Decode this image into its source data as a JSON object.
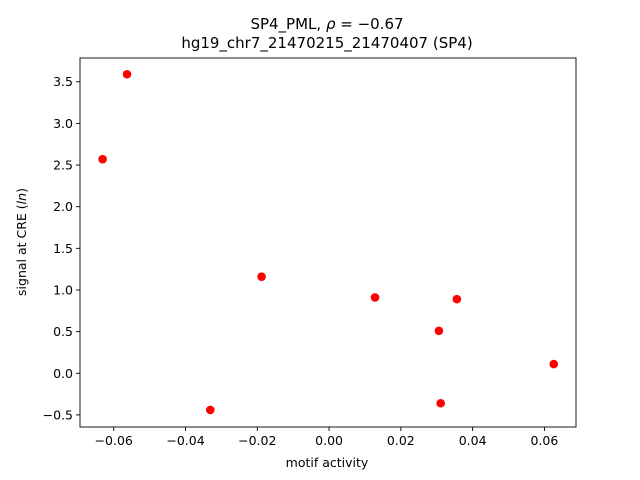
{
  "chart_data": {
    "type": "scatter",
    "title_line1_prefix": "SP4_PML, ",
    "title_line1_rho": "ρ",
    "title_line1_value": " = −0.67",
    "title_line2": "hg19_chr7_21470215_21470407 (SP4)",
    "xlabel": "motif activity",
    "ylabel_prefix": "signal at CRE (",
    "ylabel_italic": "ln",
    "ylabel_suffix": ")",
    "xlim": [
      -0.0694,
      0.0688
    ],
    "ylim": [
      -0.645,
      3.785
    ],
    "x_ticks": [
      {
        "value": -0.06,
        "label": "−0.06"
      },
      {
        "value": -0.04,
        "label": "−0.04"
      },
      {
        "value": -0.02,
        "label": "−0.02"
      },
      {
        "value": 0.0,
        "label": "0.00"
      },
      {
        "value": 0.02,
        "label": "0.02"
      },
      {
        "value": 0.04,
        "label": "0.04"
      },
      {
        "value": 0.06,
        "label": "0.06"
      }
    ],
    "y_ticks": [
      {
        "value": -0.5,
        "label": "−0.5"
      },
      {
        "value": 0.0,
        "label": "0.0"
      },
      {
        "value": 0.5,
        "label": "0.5"
      },
      {
        "value": 1.0,
        "label": "1.0"
      },
      {
        "value": 1.5,
        "label": "1.5"
      },
      {
        "value": 2.0,
        "label": "2.0"
      },
      {
        "value": 2.5,
        "label": "2.5"
      },
      {
        "value": 3.0,
        "label": "3.0"
      },
      {
        "value": 3.5,
        "label": "3.5"
      }
    ],
    "marker_color": "#ff0000",
    "grid": false,
    "points": [
      {
        "x": -0.0563,
        "y": 3.59
      },
      {
        "x": -0.0631,
        "y": 2.57
      },
      {
        "x": -0.0188,
        "y": 1.16
      },
      {
        "x": 0.0128,
        "y": 0.91
      },
      {
        "x": 0.0356,
        "y": 0.89
      },
      {
        "x": 0.0306,
        "y": 0.51
      },
      {
        "x": 0.0626,
        "y": 0.11
      },
      {
        "x": -0.0331,
        "y": -0.44
      },
      {
        "x": 0.0311,
        "y": -0.36
      }
    ]
  }
}
